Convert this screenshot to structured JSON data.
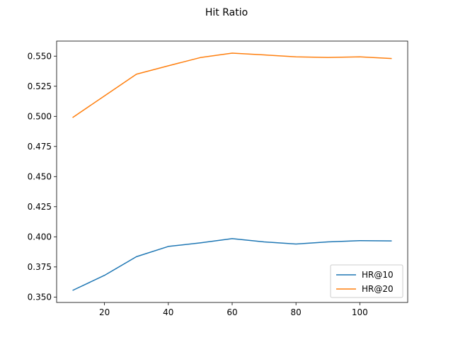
{
  "chart_data": {
    "type": "line",
    "title": "Hit Ratio",
    "xlabel": "",
    "ylabel": "",
    "xlim": [
      5,
      115
    ],
    "ylim": [
      0.3455,
      0.5625
    ],
    "xticks": [
      20,
      40,
      60,
      80,
      100
    ],
    "yticks": [
      0.35,
      0.375,
      0.4,
      0.425,
      0.45,
      0.475,
      0.5,
      0.525,
      0.55
    ],
    "ytick_labels": [
      "0.350",
      "0.375",
      "0.400",
      "0.425",
      "0.450",
      "0.475",
      "0.500",
      "0.525",
      "0.550"
    ],
    "grid": false,
    "legend": {
      "position": "lower-right"
    },
    "x": [
      10,
      20,
      30,
      40,
      50,
      60,
      70,
      80,
      90,
      100,
      110
    ],
    "series": [
      {
        "name": "HR@10",
        "color": "#1f77b4",
        "values": [
          0.3555,
          0.368,
          0.3835,
          0.392,
          0.395,
          0.3985,
          0.3958,
          0.394,
          0.3958,
          0.3968,
          0.3966
        ]
      },
      {
        "name": "HR@20",
        "color": "#ff7f0e",
        "values": [
          0.499,
          0.517,
          0.535,
          0.542,
          0.5488,
          0.5525,
          0.551,
          0.5494,
          0.5489,
          0.5494,
          0.548
        ]
      }
    ]
  }
}
